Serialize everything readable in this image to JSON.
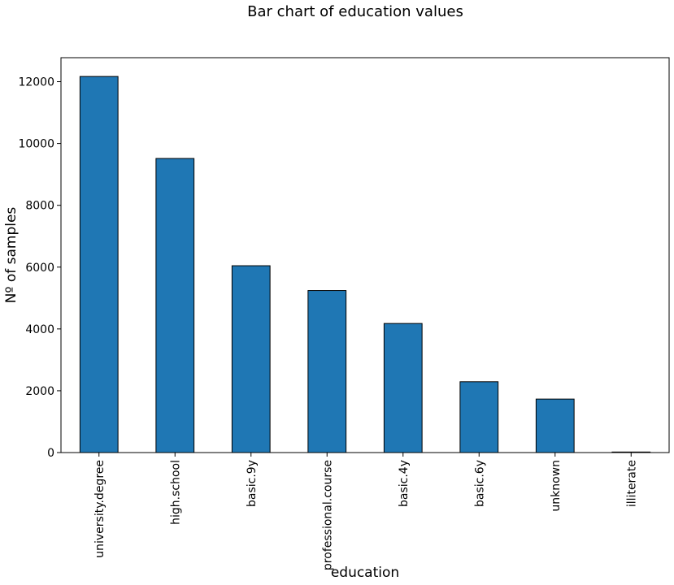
{
  "chart_data": {
    "type": "bar",
    "title": "Bar chart of education values",
    "xlabel": "education",
    "ylabel": "Nº of samples",
    "categories": [
      "university.degree",
      "high.school",
      "basic.9y",
      "professional.course",
      "basic.4y",
      "basic.6y",
      "unknown",
      "illiterate"
    ],
    "values": [
      12168,
      9515,
      6045,
      5243,
      4176,
      2292,
      1731,
      18
    ],
    "ylim": [
      0,
      12776
    ],
    "yticks": [
      0,
      2000,
      4000,
      6000,
      8000,
      10000,
      12000
    ],
    "grid": false,
    "bar_color": "#1f77b4",
    "edge_color": "#000000"
  }
}
